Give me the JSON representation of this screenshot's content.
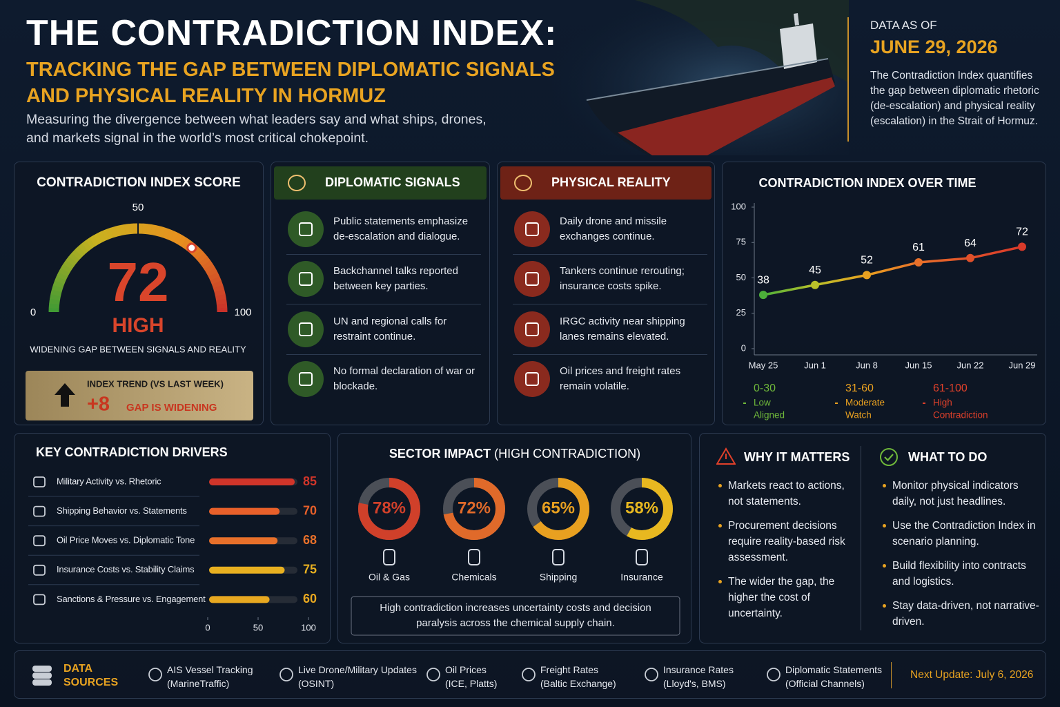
{
  "header": {
    "title": "THE CONTRADICTION INDEX:",
    "subtitle": "TRACKING THE GAP BETWEEN DIPLOMATIC SIGNALS AND PHYSICAL REALITY IN HORMUZ",
    "description": "Measuring the divergence between what leaders say and what ships, drones, and markets signal in the world’s most critical chokepoint.",
    "date_label": "DATA AS OF",
    "date": "JUNE 29, 2026",
    "summary": "The Contradiction Index quantifies the gap between diplomatic rhetoric (de-escalation) and physical reality (escalation) in the Strait of Hormuz."
  },
  "chart_data": [
    {
      "type": "gauge",
      "title": "CONTRADICTION INDEX SCORE",
      "value": 72,
      "color": "#d9452b",
      "colors": [
        "#3e9a35",
        "#c9b21f",
        "#e8901f",
        "#c8302a"
      ],
      "status": "HIGH",
      "caption": "WIDENING GAP BETWEEN SIGNALS AND REALITY",
      "ylim": [
        0,
        100
      ],
      "yticks": [
        0,
        50,
        100
      ],
      "trend": {
        "label": "INDEX TREND (VS LAST WEEK)",
        "value": 8,
        "value_label": "+8",
        "note": "GAP IS WIDENING"
      }
    },
    {
      "type": "line",
      "title": "CONTRADICTION INDEX OVER TIME",
      "categories": [
        "May 25",
        "Jun 1",
        "Jun 8",
        "Jun 15",
        "Jun 22",
        "Jun 29"
      ],
      "values": [
        38,
        45,
        52,
        61,
        64,
        72
      ],
      "point_colors": [
        "#4caf3a",
        "#b9c02a",
        "#e8a020",
        "#e8702a",
        "#e0502a",
        "#d83a2a"
      ],
      "ylim": [
        0,
        100
      ],
      "yticks": [
        0,
        25,
        50,
        75,
        100
      ],
      "grid": false,
      "bands": [
        {
          "range": "0-30",
          "name": "Low",
          "description": "Aligned",
          "color": "#6fb83a"
        },
        {
          "range": "31-60",
          "name": "Moderate",
          "description": "Watch",
          "color": "#e8a020"
        },
        {
          "range": "61-100",
          "name": "High",
          "description": "Contradiction",
          "color": "#e0402a"
        }
      ]
    },
    {
      "type": "bar",
      "orientation": "horizontal",
      "title": "KEY CONTRADICTION DRIVERS",
      "categories": [
        "Military Activity vs. Rhetoric",
        "Shipping Behavior vs. Statements",
        "Oil Price Moves vs. Diplomatic Tone",
        "Insurance Costs vs. Stability Claims",
        "Sanctions & Pressure vs. Engagement"
      ],
      "values": [
        85,
        70,
        68,
        75,
        60
      ],
      "colors": [
        "#d0352a",
        "#e8602a",
        "#e8702a",
        "#e8b020",
        "#e8a820"
      ],
      "xlim": [
        0,
        100
      ],
      "xticks": [
        0,
        50,
        100
      ]
    },
    {
      "type": "donut",
      "title": "SECTOR IMPACT",
      "subtitle": "(HIGH CONTRADICTION)",
      "categories": [
        "Oil & Gas",
        "Chemicals",
        "Shipping",
        "Insurance"
      ],
      "values": [
        78,
        72,
        65,
        58
      ],
      "value_labels": [
        "78%",
        "72%",
        "65%",
        "58%"
      ],
      "colors": [
        "#d0402a",
        "#e06a2a",
        "#e8a020",
        "#e8b820"
      ],
      "ylim": [
        0,
        100
      ],
      "note": "High contradiction increases uncertainty costs and decision paralysis across the chemical supply chain."
    }
  ],
  "signals": {
    "title": "DIPLOMATIC SIGNALS",
    "items": [
      "Public statements emphasize de-escalation and dialogue.",
      "Backchannel talks reported between key parties.",
      "UN and regional calls for restraint continue.",
      "No formal declaration of war or blockade."
    ]
  },
  "reality": {
    "title": "PHYSICAL REALITY",
    "items": [
      "Daily drone and missile exchanges continue.",
      "Tankers continue rerouting; insurance costs spike.",
      "IRGC activity near shipping lanes remains elevated.",
      "Oil prices and freight rates remain volatile."
    ]
  },
  "why": {
    "title": "WHY IT MATTERS",
    "items": [
      "Markets react to actions, not statements.",
      "Procurement decisions require reality-based risk assessment.",
      "The wider the gap, the higher the cost of uncertainty."
    ]
  },
  "todo": {
    "title": "WHAT TO DO",
    "items": [
      "Monitor physical indicators daily, not just headlines.",
      "Use the Contradiction Index in scenario planning.",
      "Build flexibility into contracts and logistics.",
      "Stay data-driven, not narrative-driven."
    ]
  },
  "sources": {
    "title": "DATA SOURCES",
    "items": [
      {
        "name": "AIS Vessel Tracking",
        "detail": "(MarineTraffic)"
      },
      {
        "name": "Live Drone/Military Updates",
        "detail": "(OSINT)"
      },
      {
        "name": "Oil Prices",
        "detail": "(ICE, Platts)"
      },
      {
        "name": "Freight Rates",
        "detail": "(Baltic Exchange)"
      },
      {
        "name": "Insurance Rates",
        "detail": "(Lloyd's, BMS)"
      },
      {
        "name": "Diplomatic Statements",
        "detail": "(Official Channels)"
      }
    ],
    "next_update": "Next Update: July 6, 2026"
  }
}
